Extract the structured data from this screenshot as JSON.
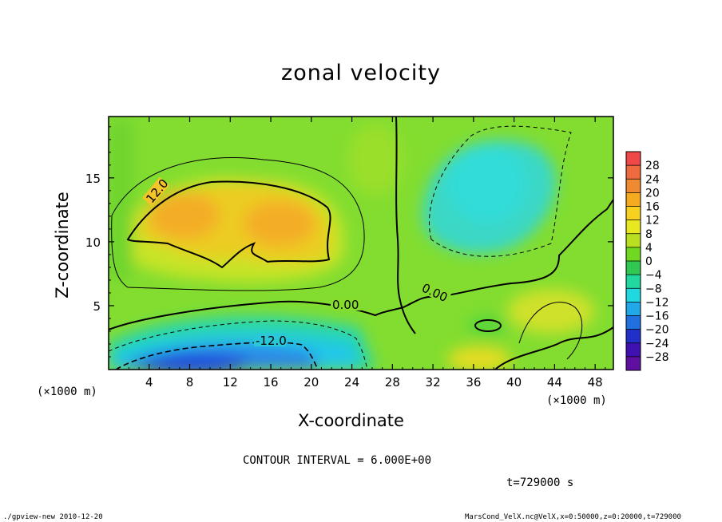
{
  "chart_data": {
    "type": "heatmap",
    "title": "zonal velocity",
    "xlabel": "X-coordinate",
    "ylabel": "Z-coordinate",
    "x_unit_label": "(×1000 m)",
    "xlim": [
      0,
      49.8
    ],
    "ylim": [
      0,
      19.8
    ],
    "x_ticks": [
      4,
      8,
      12,
      16,
      20,
      24,
      28,
      32,
      36,
      40,
      44,
      48
    ],
    "y_ticks": [
      5,
      10,
      15
    ],
    "contour_interval_text": "CONTOUR INTERVAL = 6.000E+00",
    "time_text": "t=729000 s",
    "contour_labels": [
      "12.0",
      "0.00",
      "-12.0",
      "0.00"
    ],
    "colorbar": {
      "ticks": [
        "28",
        "24",
        "20",
        "16",
        "12",
        "8",
        "4",
        "0",
        "−4",
        "−8",
        "−12",
        "−16",
        "−20",
        "−24",
        "−28"
      ],
      "colors": [
        "#f04848",
        "#f06a40",
        "#f08a30",
        "#f5aa20",
        "#f8d020",
        "#e8e820",
        "#b8e020",
        "#70d820",
        "#30c850",
        "#20d8a0",
        "#20d8e0",
        "#20a8e8",
        "#2070e0",
        "#2030c8",
        "#4010b0",
        "#6010a0"
      ]
    },
    "colors": {
      "background": "#7ddd2c",
      "warm_core": "#f5b325",
      "cool_core": "#2a78e6",
      "cyan_region": "#30dcd0"
    }
  },
  "footer": {
    "left": "./gpview-new  2010-12-20",
    "right": "MarsCond_VelX.nc@VelX,x=0:50000,z=0:20000,t=729000"
  }
}
